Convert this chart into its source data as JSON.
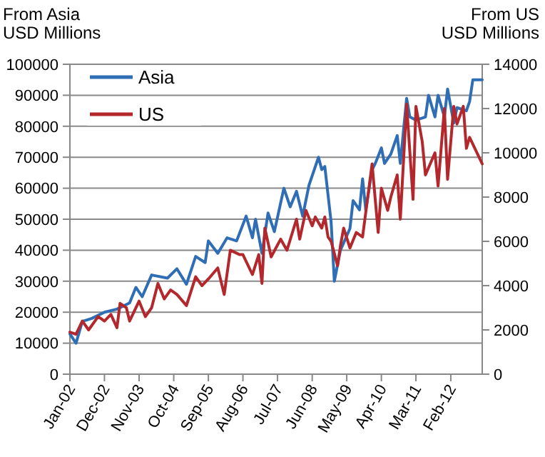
{
  "chart_data": {
    "type": "line",
    "ylabel": "From Asia\nUSD Millions",
    "y2label": "From US\nUSD Millions",
    "xlim": [
      "2002-01",
      "2012-12"
    ],
    "xticks": [
      {
        "value": "2002-01",
        "label": "Jan-02"
      },
      {
        "value": "2002-12",
        "label": "Dec-02"
      },
      {
        "value": "2003-11",
        "label": "Nov-03"
      },
      {
        "value": "2004-10",
        "label": "Oct-04"
      },
      {
        "value": "2005-09",
        "label": "Sep-05"
      },
      {
        "value": "2006-08",
        "label": "Aug-06"
      },
      {
        "value": "2007-07",
        "label": "Jul-07"
      },
      {
        "value": "2008-06",
        "label": "Jun-08"
      },
      {
        "value": "2009-05",
        "label": "May-09"
      },
      {
        "value": "2010-04",
        "label": "Apr-10"
      },
      {
        "value": "2011-03",
        "label": "Mar-11"
      },
      {
        "value": "2012-02",
        "label": "Feb-12"
      }
    ],
    "ylim": [
      0,
      100000
    ],
    "yticks": [
      0,
      10000,
      20000,
      30000,
      40000,
      50000,
      60000,
      70000,
      80000,
      90000,
      100000
    ],
    "y2lim": [
      0,
      14000
    ],
    "y2ticks": [
      0,
      2000,
      4000,
      6000,
      8000,
      10000,
      12000,
      14000
    ],
    "grid": "y",
    "legend": "top left",
    "marker": "none",
    "line_style": "solid",
    "series": [
      {
        "name": "Asia",
        "color": "#2f6db5",
        "x": [
          "2002-01",
          "2002-03",
          "2002-05",
          "2002-08",
          "2002-12",
          "2003-04",
          "2003-08",
          "2003-10",
          "2003-12",
          "2004-03",
          "2004-08",
          "2004-11",
          "2005-02",
          "2005-05",
          "2005-08",
          "2005-09",
          "2005-12",
          "2006-03",
          "2006-06",
          "2006-09",
          "2006-11",
          "2006-12",
          "2007-02",
          "2007-04",
          "2007-06",
          "2007-09",
          "2007-11",
          "2008-01",
          "2008-03",
          "2008-05",
          "2008-08",
          "2008-09",
          "2008-10",
          "2008-12",
          "2009-01",
          "2009-03",
          "2009-06",
          "2009-07",
          "2009-09",
          "2009-10",
          "2009-11",
          "2010-01",
          "2010-02",
          "2010-04",
          "2010-05",
          "2010-07",
          "2010-09",
          "2010-10",
          "2010-12",
          "2011-01",
          "2011-03",
          "2011-06",
          "2011-07",
          "2011-09",
          "2011-10",
          "2011-12",
          "2012-01",
          "2012-03",
          "2012-04",
          "2012-07",
          "2012-08",
          "2012-09",
          "2012-11",
          "2012-12"
        ],
        "values": [
          13000,
          10000,
          17000,
          18000,
          20000,
          21000,
          23000,
          28000,
          25000,
          32000,
          31000,
          34000,
          29000,
          38000,
          36000,
          43000,
          39000,
          44000,
          43000,
          51000,
          44000,
          50000,
          39000,
          52000,
          46000,
          60000,
          54000,
          59000,
          51000,
          61000,
          70000,
          66000,
          67000,
          49000,
          30000,
          40000,
          47000,
          56000,
          53000,
          63000,
          53000,
          66000,
          68000,
          73000,
          68000,
          71000,
          77000,
          68000,
          89000,
          83000,
          82000,
          83000,
          90000,
          83000,
          90000,
          83000,
          92000,
          81000,
          86000,
          85000,
          88000,
          95000,
          95000,
          95000
        ]
      },
      {
        "name": "US",
        "color": "#b3282d",
        "axis": "y2",
        "x": [
          "2002-01",
          "2002-03",
          "2002-05",
          "2002-07",
          "2002-10",
          "2002-12",
          "2003-02",
          "2003-04",
          "2003-05",
          "2003-07",
          "2003-08",
          "2003-11",
          "2004-01",
          "2004-03",
          "2004-05",
          "2004-07",
          "2004-09",
          "2004-11",
          "2005-02",
          "2005-05",
          "2005-07",
          "2005-09",
          "2005-12",
          "2006-02",
          "2006-04",
          "2006-07",
          "2006-08",
          "2006-11",
          "2007-01",
          "2007-02",
          "2007-03",
          "2007-05",
          "2007-08",
          "2007-10",
          "2008-01",
          "2008-02",
          "2008-04",
          "2008-06",
          "2008-07",
          "2008-09",
          "2008-10",
          "2008-11",
          "2008-12",
          "2009-02",
          "2009-03",
          "2009-04",
          "2009-06",
          "2009-08",
          "2009-10",
          "2010-01",
          "2010-03",
          "2010-04",
          "2010-06",
          "2010-07",
          "2010-09",
          "2010-10",
          "2010-12",
          "2011-02",
          "2011-03",
          "2011-05",
          "2011-06",
          "2011-09",
          "2011-10",
          "2011-12",
          "2012-01",
          "2012-03",
          "2012-04",
          "2012-06",
          "2012-07",
          "2012-08",
          "2012-12"
        ],
        "values": [
          1900,
          1800,
          2400,
          2000,
          2600,
          2400,
          2700,
          2100,
          3200,
          3000,
          2400,
          3300,
          2600,
          3000,
          4100,
          3400,
          3800,
          3600,
          3100,
          4400,
          4000,
          4300,
          4800,
          3600,
          5600,
          5400,
          5400,
          4500,
          5400,
          4100,
          6600,
          5300,
          6100,
          5600,
          7000,
          6100,
          7400,
          6700,
          7100,
          6600,
          7100,
          6200,
          6000,
          4900,
          5800,
          6600,
          5700,
          6400,
          6200,
          9500,
          6400,
          8400,
          7400,
          8000,
          9000,
          7000,
          12200,
          7900,
          12100,
          10500,
          9000,
          10000,
          8500,
          12000,
          8800,
          12100,
          11300,
          12100,
          10200,
          10700,
          9500
        ]
      }
    ]
  }
}
